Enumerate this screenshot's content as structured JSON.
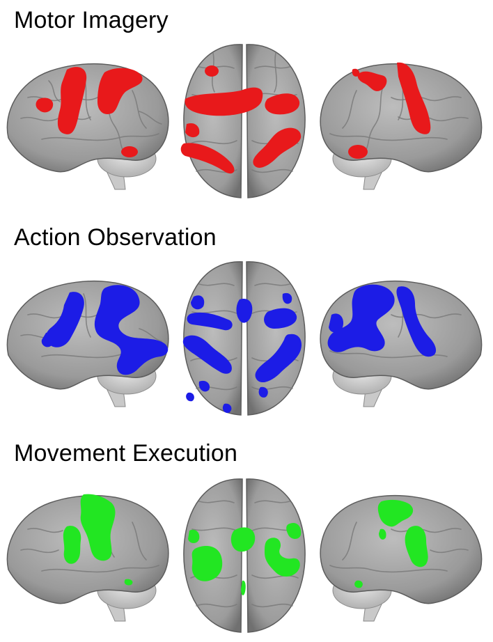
{
  "panels": [
    {
      "id": "motor-imagery",
      "title": "Motor Imagery",
      "activation_color": "#e8191b"
    },
    {
      "id": "action-observation",
      "title": "Action Observation",
      "activation_color": "#1c1ce6"
    },
    {
      "id": "movement-execution",
      "title": "Movement Execution",
      "activation_color": "#22e622"
    }
  ],
  "views": [
    "left-lateral",
    "dorsal",
    "right-lateral"
  ],
  "colors": {
    "brain_base": "#a3a3a3",
    "brain_shadow": "#6b6b6b",
    "cerebellum": "#cfcfcf",
    "background": "#ffffff"
  }
}
